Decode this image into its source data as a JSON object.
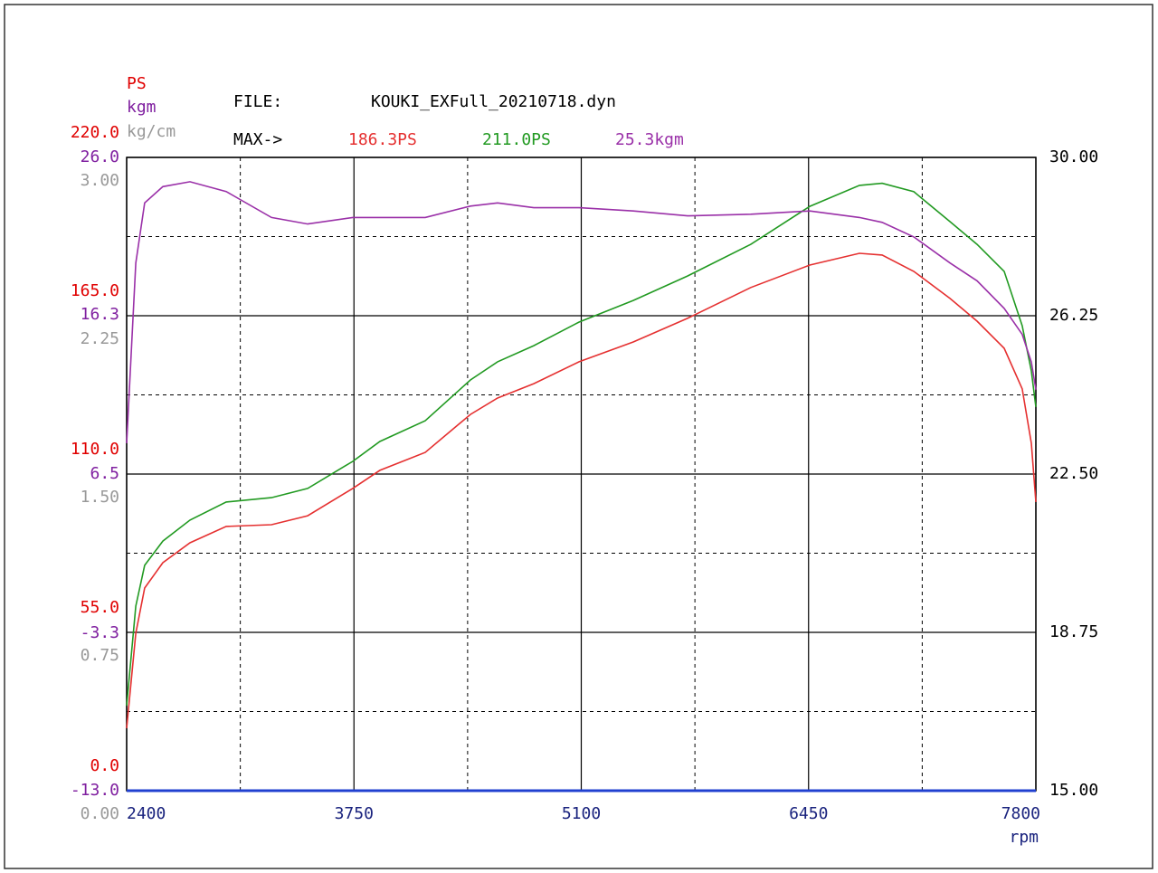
{
  "chart_data": {
    "type": "line",
    "file_label": "FILE:",
    "file_name": "KOUKI_EXFull_20210718.dyn",
    "max_label": "MAX->",
    "xlabel": "rpm",
    "ylabel": "PS",
    "y3label": "kgm",
    "y4label": "kg/cm",
    "x": [
      2400,
      2454,
      2507,
      2615,
      2776,
      2991,
      3260,
      3475,
      3743,
      3904,
      4173,
      4442,
      4603,
      4818,
      5087,
      5409,
      5731,
      6107,
      6457,
      6752,
      6887,
      7075,
      7290,
      7451,
      7612,
      7719,
      7773,
      7800
    ],
    "xlim": [
      2400,
      7800
    ],
    "xticks": [
      2400,
      3750,
      5100,
      6450,
      7800
    ],
    "ylim": [
      0,
      220
    ],
    "yticks": [
      {
        "value": 0,
        "label": "0.0"
      },
      {
        "value": 55,
        "label": "55.0"
      },
      {
        "value": 110,
        "label": "110.0"
      },
      {
        "value": 165,
        "label": "165.0"
      },
      {
        "value": 220,
        "label": "220.0"
      }
    ],
    "y3lim": [
      -13,
      26
    ],
    "y3ticks": [
      {
        "value": -13,
        "label": "-13.0"
      },
      {
        "value": -3.3,
        "label": "-3.3"
      },
      {
        "value": 6.5,
        "label": "6.5"
      },
      {
        "value": 16.3,
        "label": "16.3"
      },
      {
        "value": 26,
        "label": "26.0"
      }
    ],
    "y4lim": [
      0,
      3
    ],
    "y4ticks": [
      {
        "value": 0,
        "label": "0.00"
      },
      {
        "value": 0.75,
        "label": "0.75"
      },
      {
        "value": 1.5,
        "label": "1.50"
      },
      {
        "value": 2.25,
        "label": "2.25"
      },
      {
        "value": 3,
        "label": "3.00"
      }
    ],
    "y2lim": [
      15,
      30
    ],
    "y2ticks": [
      {
        "value": 15,
        "label": "15.00"
      },
      {
        "value": 18.75,
        "label": "18.75"
      },
      {
        "value": 22.5,
        "label": "22.50"
      },
      {
        "value": 26.25,
        "label": "26.25"
      },
      {
        "value": 30,
        "label": "30.00"
      }
    ],
    "grid": true,
    "series": [
      {
        "color": "#e53030",
        "axis": "y",
        "max_label": "186.3PS",
        "values": [
          21.7,
          54.7,
          70.4,
          79.2,
          86.1,
          91.8,
          92.4,
          95.5,
          105.0,
          111.3,
          117.5,
          130.7,
          136.4,
          141.4,
          149.0,
          155.9,
          164.1,
          174.8,
          182.6,
          186.7,
          186.1,
          180.4,
          171.0,
          163.1,
          153.7,
          139.6,
          120.7,
          100.3
        ]
      },
      {
        "color": "#229a22",
        "axis": "y",
        "max_label": "211.0PS",
        "values": [
          29.5,
          64.1,
          78.3,
          86.7,
          94.0,
          100.3,
          101.8,
          105.0,
          114.4,
          121.3,
          128.5,
          142.7,
          149.0,
          154.6,
          162.8,
          170.3,
          178.8,
          189.8,
          203.0,
          210.3,
          211.0,
          208.1,
          197.7,
          189.8,
          180.4,
          161.5,
          145.8,
          133.3
        ]
      },
      {
        "color": "#9a30a8",
        "axis": "y3",
        "max_label": "25.3kgm",
        "values": [
          8.4,
          19.5,
          23.2,
          24.2,
          24.5,
          23.9,
          22.3,
          21.9,
          22.3,
          22.3,
          22.3,
          23.0,
          23.2,
          22.9,
          22.9,
          22.7,
          22.4,
          22.5,
          22.7,
          22.3,
          22.0,
          21.1,
          19.5,
          18.4,
          16.7,
          15.1,
          13.4,
          11.7
        ]
      },
      {
        "color": "#2040d0",
        "axis": "y4",
        "values": [
          0,
          0,
          0,
          0,
          0,
          0,
          0,
          0,
          0,
          0,
          0,
          0,
          0,
          0,
          0,
          0,
          0,
          0,
          0,
          0,
          0,
          0,
          0,
          0,
          0,
          0,
          0,
          0
        ]
      }
    ]
  }
}
